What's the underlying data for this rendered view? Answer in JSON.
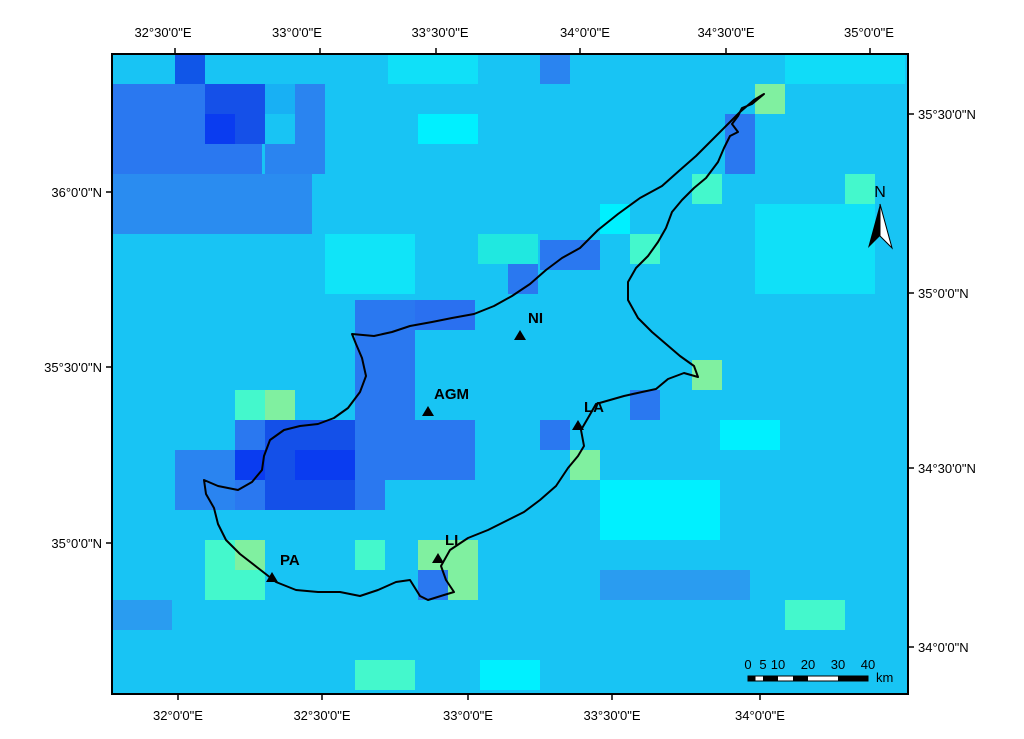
{
  "map": {
    "top_labels": [
      "32°30'0\"E",
      "33°0'0\"E",
      "33°30'0\"E",
      "34°0'0\"E",
      "34°30'0\"E",
      "35°0'0\"E"
    ],
    "bottom_labels": [
      "32°0'0\"E",
      "32°30'0\"E",
      "33°0'0\"E",
      "33°30'0\"E",
      "34°0'0\"E"
    ],
    "left_labels": [
      "36°0'0\"N",
      "35°30'0\"N",
      "35°0'0\"N"
    ],
    "right_labels": [
      "35°30'0\"N",
      "35°0'0\"N",
      "34°30'0\"N",
      "34°0'0\"N"
    ],
    "north_arrow": "N",
    "sites": [
      "NI",
      "AGM",
      "LA",
      "LI",
      "PA"
    ],
    "scale_ticks": [
      "0",
      "5",
      "10",
      "20",
      "30",
      "40"
    ],
    "scale_unit": "km",
    "colors": {
      "deep_blue": "#0a3cf0",
      "blue": "#2a78f0",
      "light_blue": "#1ab6f4",
      "cyan": "#00f0ff",
      "aquamarine": "#44f8cc",
      "light_green": "#80f0a0",
      "outline": "#000000"
    }
  }
}
